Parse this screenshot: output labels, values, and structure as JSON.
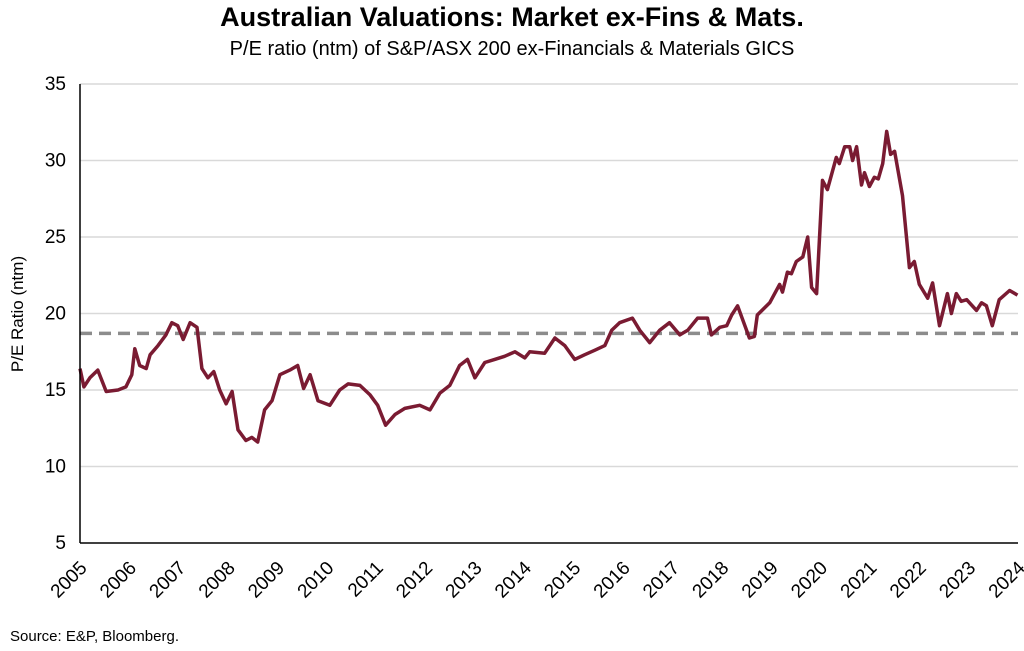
{
  "chart_data": {
    "type": "line",
    "title": "Australian Valuations: Market ex-Fins & Mats.",
    "subtitle": "P/E ratio (ntm) of S&P/ASX 200 ex-Financials & Materials GICS",
    "xlabel": "",
    "ylabel": "P/E Ratio (ntm)",
    "source": "Source: E&P, Bloomberg.",
    "xlim": [
      2005,
      2024
    ],
    "ylim": [
      5,
      35
    ],
    "yticks": [
      5,
      10,
      15,
      20,
      25,
      30,
      35
    ],
    "xticks": [
      "2005",
      "2006",
      "2007",
      "2008",
      "2009",
      "2010",
      "2011",
      "2012",
      "2013",
      "2014",
      "2015",
      "2016",
      "2017",
      "2018",
      "2019",
      "2020",
      "2021",
      "2022",
      "2023",
      "2024"
    ],
    "grid": "horizontal",
    "legend": "none",
    "colors": {
      "series": "#7a1b32",
      "average": "#8c8c8c",
      "grid": "#d9d9d9"
    },
    "average_line": 18.7,
    "series": [
      {
        "x": [
          2005.0,
          2005.08,
          2005.2,
          2005.36,
          2005.53,
          2005.77,
          2005.93,
          2006.05,
          2006.11,
          2006.21,
          2006.34,
          2006.42,
          2006.58,
          2006.74,
          2006.86,
          2006.98,
          2007.09,
          2007.23,
          2007.37,
          2007.47,
          2007.59,
          2007.71,
          2007.83,
          2007.96,
          2008.08,
          2008.2,
          2008.36,
          2008.48,
          2008.6,
          2008.74,
          2008.89,
          2009.05,
          2009.25,
          2009.41,
          2009.53,
          2009.66,
          2009.82,
          2010.06,
          2010.26,
          2010.43,
          2010.67,
          2010.87,
          2011.03,
          2011.19,
          2011.38,
          2011.58,
          2011.88,
          2012.09,
          2012.29,
          2012.49,
          2012.69,
          2012.85,
          2013.0,
          2013.2,
          2013.4,
          2013.6,
          2013.81,
          2014.01,
          2014.11,
          2014.41,
          2014.62,
          2014.82,
          2015.02,
          2015.22,
          2015.43,
          2015.63,
          2015.77,
          2015.93,
          2016.19,
          2016.34,
          2016.54,
          2016.74,
          2016.94,
          2017.15,
          2017.31,
          2017.51,
          2017.71,
          2017.79,
          2017.96,
          2018.1,
          2018.2,
          2018.32,
          2018.56,
          2018.66,
          2018.72,
          2018.97,
          2019.17,
          2019.23,
          2019.33,
          2019.41,
          2019.51,
          2019.64,
          2019.74,
          2019.82,
          2019.92,
          2020.04,
          2020.14,
          2020.32,
          2020.38,
          2020.49,
          2020.59,
          2020.65,
          2020.73,
          2020.83,
          2020.89,
          2020.99,
          2021.09,
          2021.17,
          2021.26,
          2021.34,
          2021.42,
          2021.5,
          2021.66,
          2021.8,
          2021.9,
          2022.0,
          2022.17,
          2022.27,
          2022.41,
          2022.57,
          2022.65,
          2022.75,
          2022.85,
          2022.96,
          2023.16,
          2023.26,
          2023.36,
          2023.48,
          2023.62,
          2023.83,
          2023.99
        ],
        "values": [
          16.4,
          15.2,
          15.8,
          16.3,
          14.9,
          15.0,
          15.2,
          16.0,
          17.7,
          16.6,
          16.4,
          17.3,
          17.9,
          18.6,
          19.4,
          19.2,
          18.3,
          19.4,
          19.1,
          16.4,
          15.8,
          16.2,
          15.0,
          14.1,
          14.9,
          12.4,
          11.7,
          11.9,
          11.6,
          13.7,
          14.3,
          16.0,
          16.3,
          16.6,
          15.1,
          16.0,
          14.3,
          14.0,
          15.0,
          15.4,
          15.3,
          14.7,
          14.0,
          12.7,
          13.4,
          13.8,
          14.0,
          13.7,
          14.8,
          15.3,
          16.6,
          17.0,
          15.8,
          16.8,
          17.0,
          17.2,
          17.5,
          17.1,
          17.5,
          17.4,
          18.4,
          17.9,
          17.0,
          17.3,
          17.6,
          17.9,
          18.9,
          19.4,
          19.7,
          18.9,
          18.1,
          18.9,
          19.4,
          18.6,
          18.9,
          19.7,
          19.7,
          18.6,
          19.1,
          19.2,
          19.9,
          20.5,
          18.4,
          18.5,
          19.9,
          20.7,
          21.9,
          21.4,
          22.7,
          22.6,
          23.4,
          23.7,
          25.0,
          21.7,
          21.3,
          28.7,
          28.1,
          30.2,
          29.8,
          30.9,
          30.9,
          30.0,
          30.9,
          28.4,
          29.2,
          28.3,
          28.9,
          28.8,
          29.8,
          31.9,
          30.4,
          30.6,
          27.7,
          23.0,
          23.4,
          21.9,
          21.0,
          22.0,
          19.2,
          21.3,
          20.0,
          21.3,
          20.8,
          20.9,
          20.2,
          20.7,
          20.5,
          19.2,
          20.9,
          21.5,
          21.2
        ]
      }
    ]
  }
}
